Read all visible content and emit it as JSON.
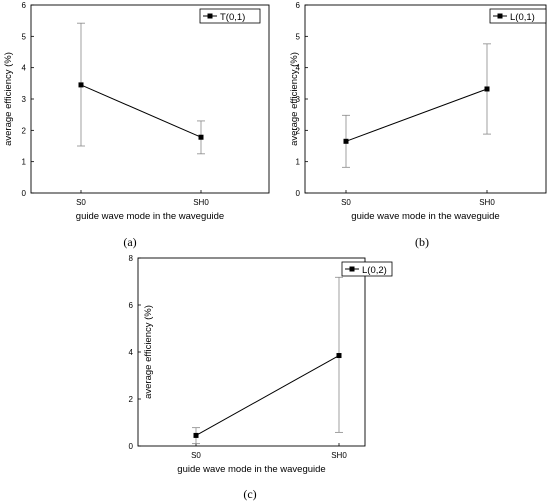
{
  "chart_data": [
    {
      "type": "line",
      "panel_label": "(a)",
      "categories": [
        "S0",
        "SH0"
      ],
      "series": [
        {
          "name": "T(0,1)",
          "values": [
            3.45,
            1.78
          ],
          "error_low": [
            1.5,
            1.25
          ],
          "error_high": [
            5.42,
            2.3
          ]
        }
      ],
      "xlabel": "guide wave mode in the waveguide",
      "ylabel": "average efficiency (%)",
      "ylim": [
        0,
        6
      ],
      "yticks": [
        0,
        1,
        2,
        3,
        4,
        5,
        6
      ],
      "legend_position": "top-right",
      "grid": false
    },
    {
      "type": "line",
      "panel_label": "(b)",
      "categories": [
        "S0",
        "SH0"
      ],
      "series": [
        {
          "name": "L(0,1)",
          "values": [
            1.65,
            3.32
          ],
          "error_low": [
            0.82,
            1.88
          ],
          "error_high": [
            2.48,
            4.76
          ]
        }
      ],
      "xlabel": "guide wave mode in the waveguide",
      "ylabel": "average efficiency (%)",
      "ylim": [
        0,
        6
      ],
      "yticks": [
        0,
        1,
        2,
        3,
        4,
        5,
        6
      ],
      "legend_position": "top-right",
      "grid": false
    },
    {
      "type": "line",
      "panel_label": "(c)",
      "categories": [
        "S0",
        "SH0"
      ],
      "series": [
        {
          "name": "L(0,2)",
          "values": [
            0.45,
            3.85
          ],
          "error_low": [
            0.1,
            0.58
          ],
          "error_high": [
            0.78,
            7.18
          ]
        }
      ],
      "xlabel": "guide wave mode in the waveguide",
      "ylabel": "average efficiency (%)",
      "ylim": [
        0,
        8
      ],
      "yticks": [
        0,
        2,
        4,
        6,
        8
      ],
      "legend_position": "top-right",
      "grid": false
    }
  ]
}
